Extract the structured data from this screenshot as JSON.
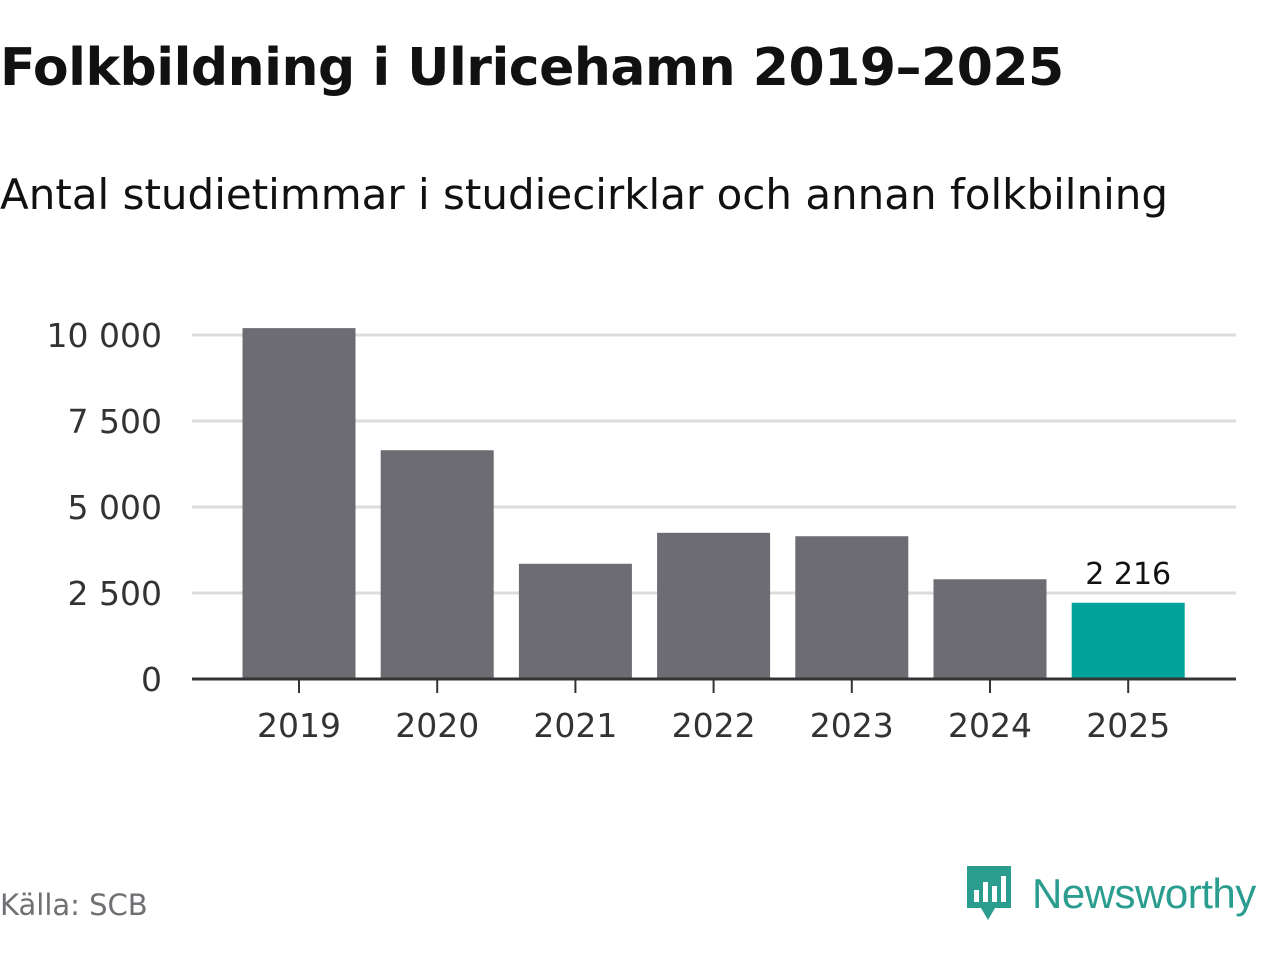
{
  "title": "Folkbildning i Ulricehamn 2019–2025",
  "subtitle": "Antal studietimmar i studiecirklar och annan folkbilning",
  "source": "Källa: SCB",
  "brand": {
    "name": "Newsworthy",
    "icon": "newsworthy-logo-icon"
  },
  "colors": {
    "bar": "#6d6c72",
    "highlight": "#00a39a",
    "grid": "#dcdcdc",
    "axis": "#333333",
    "brand": "#2a9d8f"
  },
  "chart_data": {
    "type": "bar",
    "categories": [
      "2019",
      "2020",
      "2021",
      "2022",
      "2023",
      "2024",
      "2025"
    ],
    "values": [
      10200,
      6650,
      3350,
      4250,
      4150,
      2900,
      2216
    ],
    "highlight_index": 6,
    "data_labels": [
      {
        "index": 6,
        "text": "2 216"
      }
    ],
    "ylim": [
      0,
      10000
    ],
    "yticks": [
      0,
      2500,
      5000,
      7500,
      10000
    ],
    "ytick_labels": [
      "0",
      "2 500",
      "5 000",
      "7 500",
      "10 000"
    ],
    "grid": true,
    "xlabel": "",
    "ylabel": ""
  }
}
